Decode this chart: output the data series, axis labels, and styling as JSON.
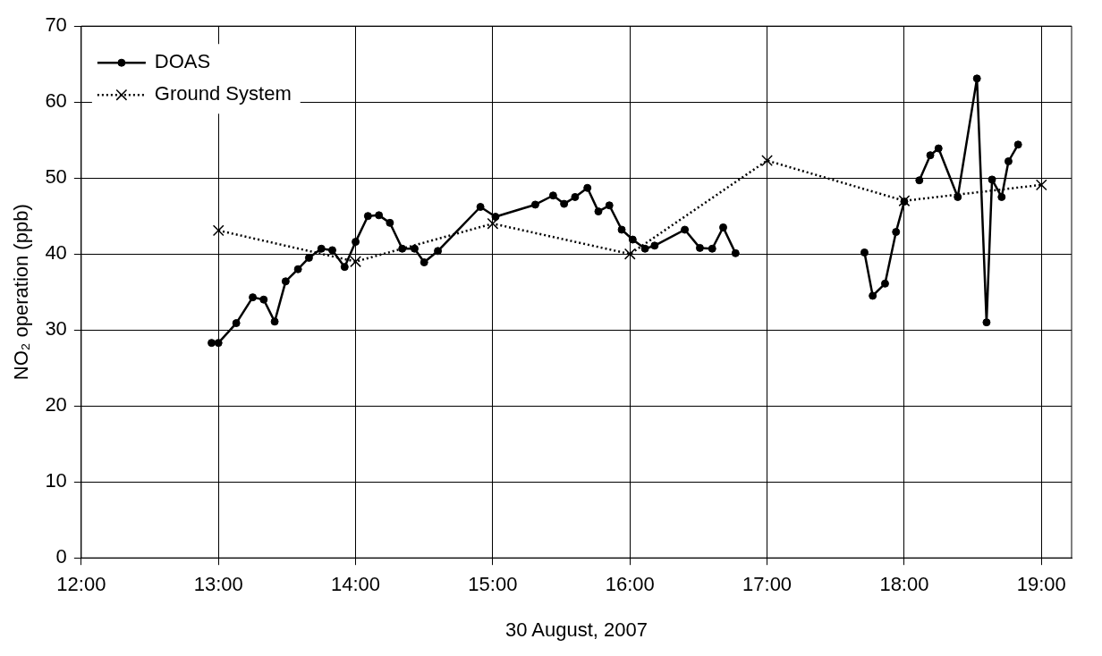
{
  "chart_data": {
    "type": "line",
    "xlabel": "30 August, 2007",
    "ylabel": "NO₂ operation (ppb)",
    "xlim": [
      12,
      19.22
    ],
    "xticks": [
      {
        "value": 12,
        "label": "12:00"
      },
      {
        "value": 13,
        "label": "13:00"
      },
      {
        "value": 14,
        "label": "14:00"
      },
      {
        "value": 15,
        "label": "15:00"
      },
      {
        "value": 16,
        "label": "16:00"
      },
      {
        "value": 17,
        "label": "17:00"
      },
      {
        "value": 18,
        "label": "18:00"
      },
      {
        "value": 19,
        "label": "19:00"
      }
    ],
    "ylim": [
      0,
      70
    ],
    "yticks": [
      0,
      10,
      20,
      30,
      40,
      50,
      60,
      70
    ],
    "grid": true,
    "legend": "top left",
    "series": [
      {
        "name": "DOAS",
        "color": "#000000",
        "marker": "circle",
        "line_style": "solid",
        "x": [
          12.95,
          13.0,
          13.13,
          13.25,
          13.33,
          13.41,
          13.49,
          13.58,
          13.66,
          13.75,
          13.83,
          13.92,
          14.0,
          14.09,
          14.17,
          14.25,
          14.34,
          14.43,
          14.5,
          14.6,
          14.91,
          15.02,
          15.31,
          15.44,
          15.52,
          15.6,
          15.69,
          15.77,
          15.85,
          15.94,
          16.02,
          16.11,
          16.18,
          16.4,
          16.51,
          16.6,
          16.68,
          16.77,
          17.2,
          17.71,
          17.77,
          17.86,
          17.94,
          18.0,
          18.05,
          18.11,
          18.19,
          18.25,
          18.39,
          18.53,
          18.6,
          18.64,
          18.71,
          18.76,
          18.83
        ],
        "values": [
          28.3,
          28.3,
          30.9,
          34.3,
          34.0,
          31.1,
          36.4,
          38.0,
          39.5,
          40.7,
          40.5,
          38.3,
          41.6,
          45.0,
          45.1,
          44.1,
          40.7,
          40.7,
          38.9,
          40.4,
          46.2,
          44.9,
          46.5,
          47.7,
          46.6,
          47.5,
          48.7,
          45.6,
          46.4,
          43.2,
          41.9,
          40.7,
          41.1,
          43.2,
          40.8,
          40.7,
          43.5,
          40.1,
          null,
          40.2,
          34.5,
          36.1,
          42.9,
          46.9,
          null,
          49.7,
          53.0,
          53.9,
          47.5,
          63.1,
          31.0,
          49.8,
          47.5,
          52.2,
          54.4
        ]
      },
      {
        "name": "Ground System",
        "color": "#000000",
        "marker": "cross",
        "line_style": "dotted",
        "x": [
          13,
          14,
          15,
          16,
          17,
          18,
          19
        ],
        "values": [
          43.1,
          39.0,
          44.0,
          40.0,
          52.3,
          47.0,
          49.1
        ]
      }
    ]
  }
}
